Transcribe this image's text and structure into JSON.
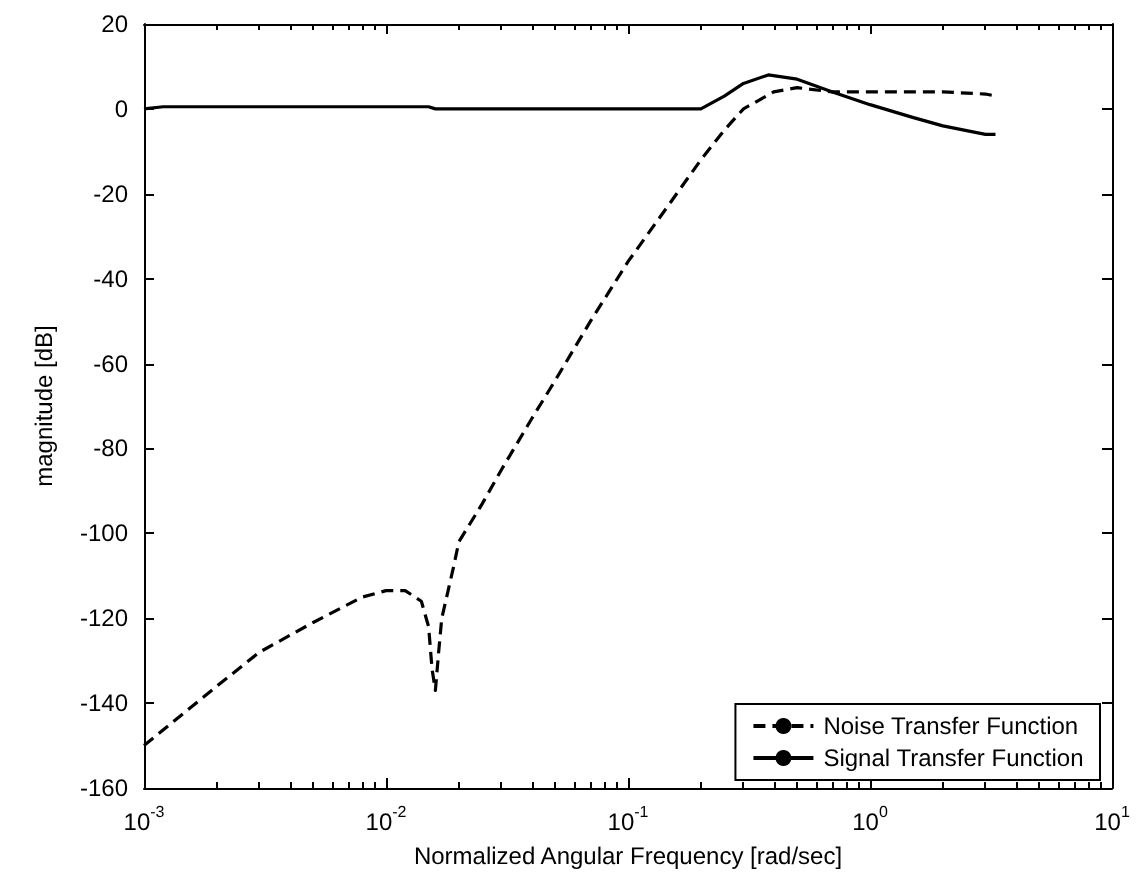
{
  "chart_data": {
    "type": "line",
    "xlabel": "Normalized Angular Frequency [rad/sec]",
    "ylabel": "magnitude [dB]",
    "log": "x",
    "xlim": [
      0.001,
      10
    ],
    "ylim": [
      -160,
      20
    ],
    "xticks": [
      {
        "value": 0.001,
        "label": "10$^{-3}$"
      },
      {
        "value": 0.01,
        "label": "10$^{-2}$"
      },
      {
        "value": 0.1,
        "label": "10$^{-1}$"
      },
      {
        "value": 1,
        "label": "10$^{0}$"
      },
      {
        "value": 10,
        "label": "10$^{1}$"
      }
    ],
    "yticks": [
      -160,
      -140,
      -120,
      -100,
      -80,
      -60,
      -40,
      -20,
      0,
      20
    ],
    "grid": false,
    "legend": "bottom right",
    "marker": "none",
    "series": [
      {
        "name": "Noise Transfer Function",
        "color": "#000000",
        "line_style": "dashed",
        "x": [
          0.001,
          0.002,
          0.003,
          0.005,
          0.008,
          0.01,
          0.012,
          0.014,
          0.015,
          0.0155,
          0.016,
          0.0165,
          0.017,
          0.019,
          0.02,
          0.025,
          0.03,
          0.04,
          0.05,
          0.07,
          0.1,
          0.15,
          0.2,
          0.25,
          0.3,
          0.4,
          0.5,
          0.7,
          1,
          2,
          3,
          3.2
        ],
        "values": [
          -150,
          -136,
          -128,
          -121,
          -115,
          -113.5,
          -113.5,
          -116,
          -122,
          -132,
          -137,
          -128,
          -120,
          -108,
          -102,
          -93,
          -85,
          -73,
          -64,
          -50,
          -36,
          -22,
          -12,
          -5,
          0,
          4,
          5,
          4,
          4,
          4,
          3.5,
          3.2
        ]
      },
      {
        "name": "Signal Transfer Function",
        "color": "#000000",
        "line_style": "solid",
        "x": [
          0.001,
          0.0012,
          0.015,
          0.016,
          0.1,
          0.2,
          0.25,
          0.3,
          0.38,
          0.5,
          0.7,
          1,
          1.5,
          2,
          3,
          3.3
        ],
        "values": [
          0,
          0.5,
          0.5,
          0,
          0,
          0,
          3,
          6,
          8,
          7,
          4,
          1,
          -2,
          -4,
          -6,
          -6
        ]
      }
    ]
  }
}
